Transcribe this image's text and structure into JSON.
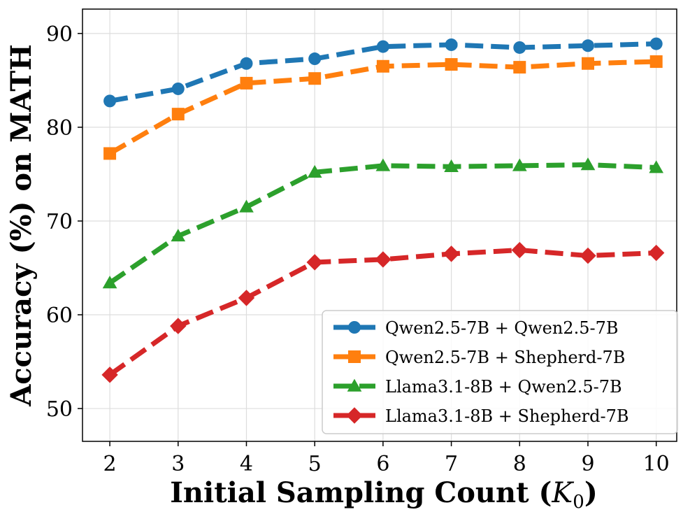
{
  "chart_data": {
    "type": "line",
    "xlabel_main": "Initial Sampling Count (",
    "xlabel_symbol": "K",
    "xlabel_subscript": "0",
    "xlabel_close": ")",
    "ylabel": "Accuracy (%) on MATH",
    "x": [
      2,
      3,
      4,
      5,
      6,
      7,
      8,
      9,
      10
    ],
    "x_ticks": [
      "2",
      "3",
      "4",
      "5",
      "6",
      "7",
      "8",
      "9",
      "10"
    ],
    "y_ticks": [
      "50",
      "60",
      "70",
      "80",
      "90"
    ],
    "y_tick_values": [
      50,
      60,
      70,
      80,
      90
    ],
    "xlim": [
      1.6,
      10.3
    ],
    "ylim": [
      46.5,
      92.6
    ],
    "grid": true,
    "legend_position": "bottom-right",
    "series": [
      {
        "name": "Qwen2.5-7B + Qwen2.5-7B",
        "color": "#1f77b4",
        "marker": "circle",
        "values": [
          82.8,
          84.1,
          86.8,
          87.3,
          88.6,
          88.8,
          88.5,
          88.7,
          88.9
        ]
      },
      {
        "name": "Qwen2.5-7B + Shepherd-7B",
        "color": "#ff7f0e",
        "marker": "square",
        "values": [
          77.2,
          81.4,
          84.7,
          85.2,
          86.5,
          86.7,
          86.4,
          86.8,
          87.0
        ]
      },
      {
        "name": "Llama3.1-8B + Qwen2.5-7B",
        "color": "#2ca02c",
        "marker": "triangle",
        "values": [
          63.4,
          68.4,
          71.5,
          75.2,
          75.9,
          75.8,
          75.9,
          76.0,
          75.7
        ]
      },
      {
        "name": "Llama3.1-8B + Shepherd-7B",
        "color": "#d62728",
        "marker": "diamond",
        "values": [
          53.6,
          58.8,
          61.8,
          65.6,
          65.9,
          66.5,
          66.9,
          66.3,
          66.6
        ]
      }
    ]
  }
}
